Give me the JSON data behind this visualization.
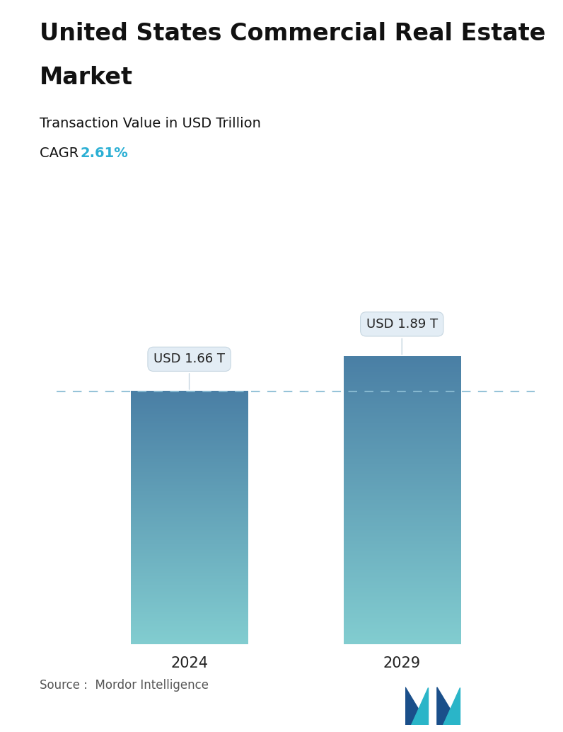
{
  "title_line1": "United States Commercial Real Estate",
  "title_line2": "Market",
  "subtitle": "Transaction Value in USD Trillion",
  "cagr_label": "CAGR ",
  "cagr_value": "2.61%",
  "cagr_color": "#2bafd4",
  "categories": [
    "2024",
    "2029"
  ],
  "values": [
    1.66,
    1.89
  ],
  "bar_labels": [
    "USD 1.66 T",
    "USD 1.89 T"
  ],
  "bar_color_top": "#4a7fa5",
  "bar_color_bottom": "#82cdd0",
  "dashed_line_color": "#8bbdd4",
  "background_color": "#ffffff",
  "source_text": "Source :  Mordor Intelligence",
  "title_fontsize": 24,
  "subtitle_fontsize": 14,
  "cagr_fontsize": 14,
  "bar_label_fontsize": 13,
  "axis_label_fontsize": 15,
  "source_fontsize": 12,
  "ylim": [
    0,
    2.5
  ],
  "bar_width": 0.22
}
